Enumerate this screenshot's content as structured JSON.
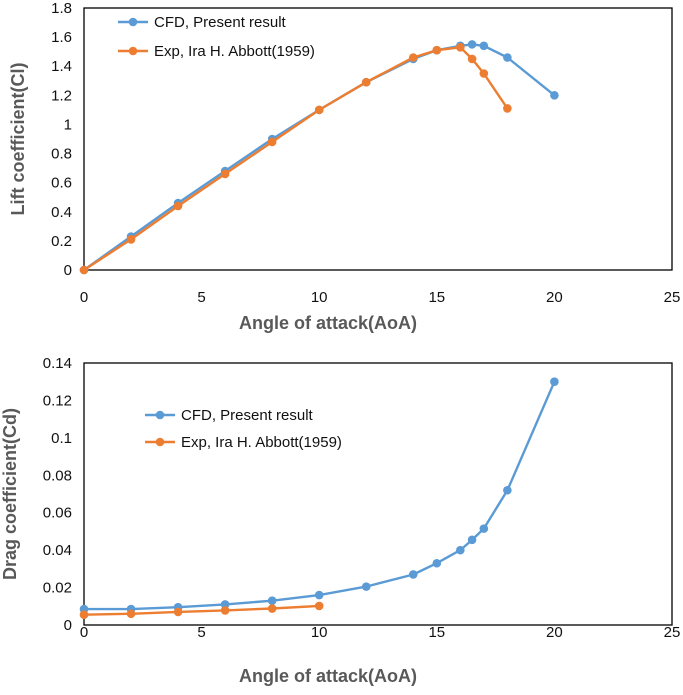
{
  "chart_data": [
    {
      "type": "line",
      "xlabel": "Angle of attack(AoA)",
      "ylabel": "Lift coefficient(Cl)",
      "xlim": [
        0,
        25
      ],
      "ylim": [
        0,
        1.8
      ],
      "xticks": [
        "0",
        "5",
        "10",
        "15",
        "20",
        "25"
      ],
      "yticks": [
        "0",
        "0.2",
        "0.4",
        "0.6",
        "0.8",
        "1",
        "1.2",
        "1.4",
        "1.6",
        "1.8"
      ],
      "legend": "top-left",
      "grid": false,
      "series": [
        {
          "name": "CFD, Present result",
          "color": "#5B9BD5",
          "x": [
            0,
            2,
            4,
            6,
            8,
            10,
            12,
            14,
            15,
            16,
            16.5,
            17,
            18,
            20
          ],
          "y": [
            0,
            0.23,
            0.46,
            0.68,
            0.9,
            1.1,
            1.29,
            1.45,
            1.51,
            1.54,
            1.55,
            1.54,
            1.46,
            1.2
          ]
        },
        {
          "name": "Exp, Ira H. Abbott(1959)",
          "color": "#ED7D31",
          "x": [
            0,
            2,
            4,
            6,
            8,
            10,
            12,
            14,
            15,
            16,
            16.5,
            17,
            18
          ],
          "y": [
            0,
            0.21,
            0.44,
            0.66,
            0.88,
            1.1,
            1.29,
            1.46,
            1.51,
            1.53,
            1.45,
            1.35,
            1.11
          ]
        }
      ]
    },
    {
      "type": "line",
      "xlabel": "Angle of attack(AoA)",
      "ylabel": "Drag coefficient(Cd)",
      "xlim": [
        0,
        25
      ],
      "ylim": [
        0,
        0.14
      ],
      "xticks": [
        "0",
        "5",
        "10",
        "15",
        "20",
        "25"
      ],
      "yticks": [
        "0",
        "0.02",
        "0.04",
        "0.06",
        "0.08",
        "0.1",
        "0.12",
        "0.14"
      ],
      "legend": "center-left",
      "grid": false,
      "series": [
        {
          "name": "CFD, Present result",
          "color": "#5B9BD5",
          "x": [
            0,
            2,
            4,
            6,
            8,
            10,
            12,
            14,
            15,
            16,
            16.5,
            17,
            18,
            20
          ],
          "y": [
            0.0085,
            0.0085,
            0.0095,
            0.011,
            0.013,
            0.016,
            0.0205,
            0.027,
            0.033,
            0.04,
            0.0455,
            0.0515,
            0.072,
            0.13
          ]
        },
        {
          "name": "Exp, Ira H. Abbott(1959)",
          "color": "#ED7D31",
          "x": [
            0,
            2,
            4,
            6,
            8,
            10
          ],
          "y": [
            0.0055,
            0.006,
            0.007,
            0.0078,
            0.0088,
            0.0102
          ]
        }
      ]
    }
  ]
}
